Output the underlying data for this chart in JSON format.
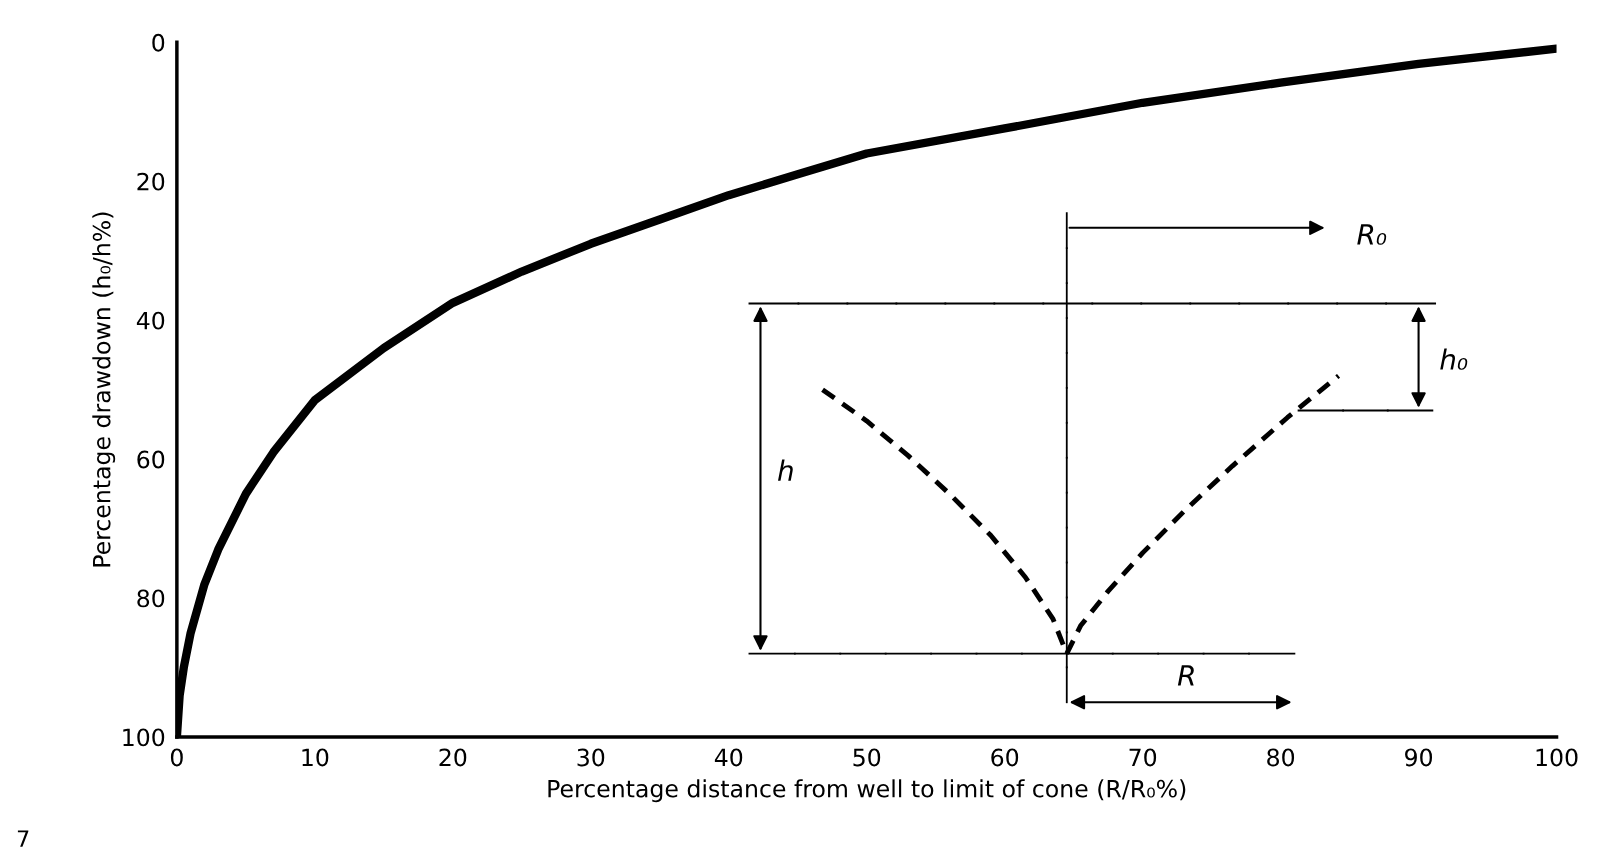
{
  "chart_data": {
    "type": "line",
    "xlabel": "Percentage distance from well to limit of cone (R/R₀%)",
    "ylabel": "Percentage drawdown (h₀/h%)",
    "x": [
      0,
      0.2,
      0.5,
      1,
      2,
      3,
      5,
      7,
      10,
      15,
      20,
      25,
      30,
      35,
      40,
      45,
      50,
      60,
      70,
      80,
      90,
      100
    ],
    "series": [
      {
        "color": "#000000",
        "values": [
          100,
          94,
          90,
          85,
          78,
          73,
          65,
          59,
          51.5,
          44,
          37.5,
          33,
          29,
          25.5,
          22,
          19,
          16,
          12.4,
          8.7,
          5.8,
          3.1,
          0.9
        ]
      }
    ],
    "xlim": [
      0,
      100
    ],
    "xticks": [
      0,
      10,
      20,
      30,
      40,
      50,
      60,
      70,
      80,
      90,
      100
    ],
    "ylim": [
      100,
      0
    ],
    "yticks": [
      0,
      20,
      40,
      60,
      80,
      100
    ],
    "grid": false,
    "legend": false,
    "marker": "none",
    "line_style": "solid",
    "annotations": [
      "R₀",
      "h₀",
      "h",
      "R",
      "7"
    ]
  }
}
